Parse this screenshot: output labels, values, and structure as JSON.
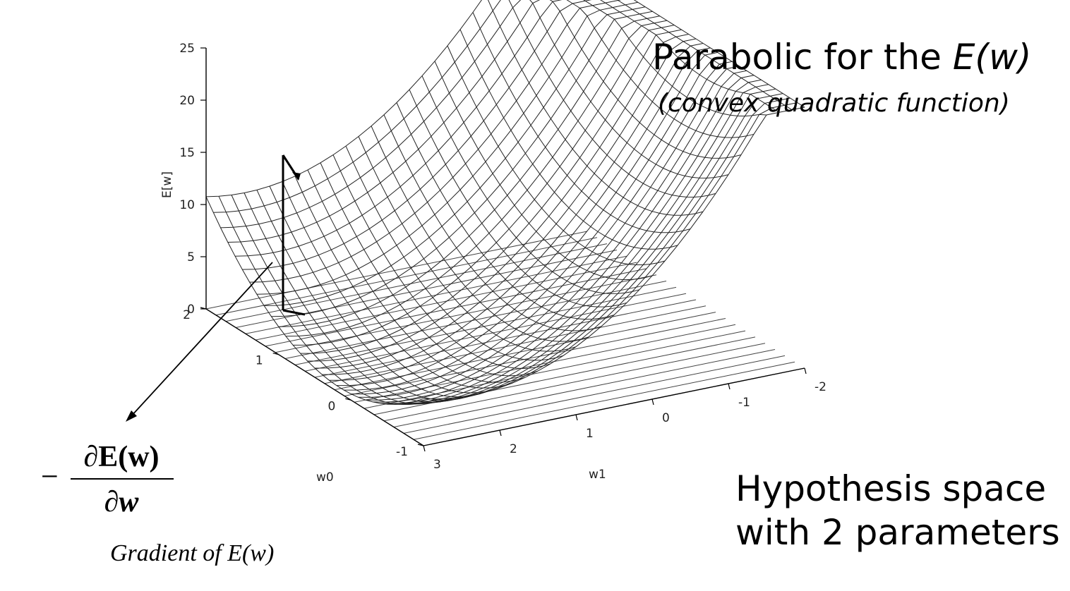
{
  "title": {
    "main_prefix": "Parabolic for the ",
    "main_emph": "E(w)",
    "subtitle": "(convex quadratic function)"
  },
  "hypothesis": {
    "line1": "Hypothesis space",
    "line2": "with 2 parameters"
  },
  "formula": {
    "minus": "−",
    "numerator": "∂E(w)",
    "denominator": "∂w",
    "caption": "Gradient of E(w)"
  },
  "chart_data": {
    "type": "surface",
    "zlabel": "E[w]",
    "xlabel": "w0",
    "ylabel": "w1",
    "z_ticks": [
      "0",
      "5",
      "10",
      "15",
      "20",
      "25"
    ],
    "w0_ticks": [
      "2",
      "1",
      "0",
      "-1"
    ],
    "w1_ticks": [
      "3",
      "2",
      "1",
      "0",
      "-1",
      "-2"
    ],
    "zlim": [
      0,
      25
    ],
    "w0_range": [
      -1,
      2
    ],
    "w1_range": [
      -2,
      3
    ],
    "surface": "E(w0,w1) convex quadratic bowl, minimum 0 near w0=-0.9, w1=0.7",
    "gradient_start": {
      "w0": 1.8,
      "w1": 2.4,
      "E": 15
    },
    "grid": "mesh",
    "colors": {
      "mesh": "#222222",
      "axis": "#000000"
    }
  }
}
